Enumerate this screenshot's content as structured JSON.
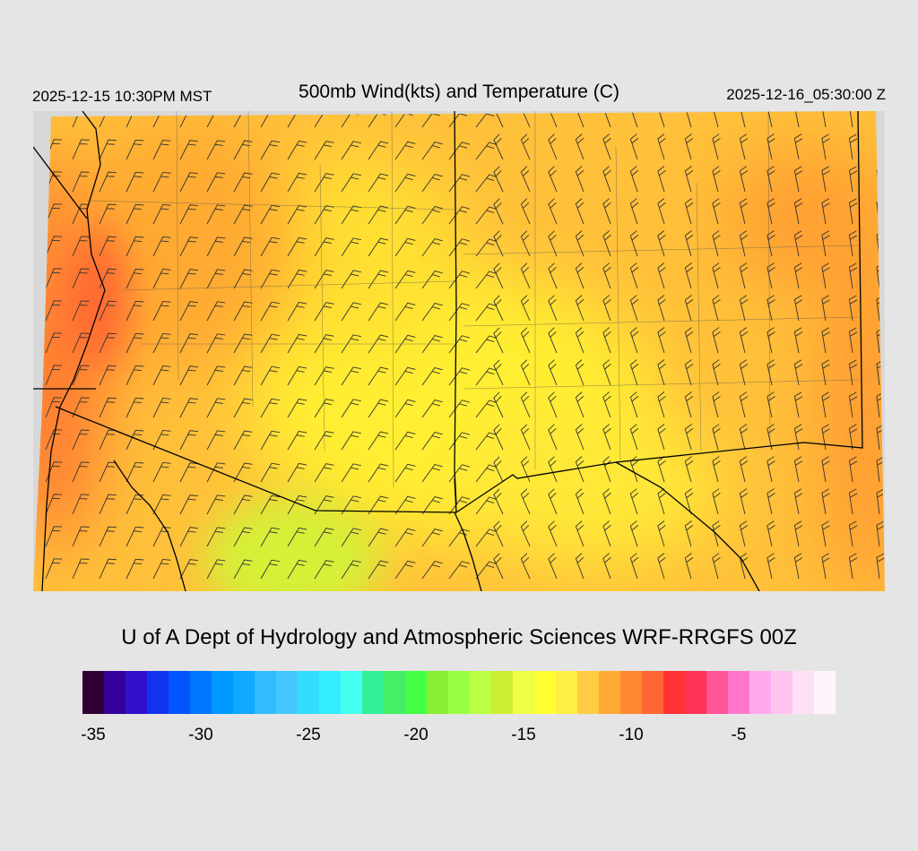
{
  "header": {
    "valid_local": "2025-12-15 10:30PM MST",
    "title": "500mb Wind(kts) and Temperature (C)",
    "valid_utc": "2025-12-16_05:30:00 Z"
  },
  "credit": "U of A Dept of Hydrology and Atmospheric Sciences WRF-RRGFS 00Z",
  "colorbar": {
    "colors": [
      "#330033",
      "#330099",
      "#3311cc",
      "#1133ee",
      "#0055ff",
      "#0077ff",
      "#0099ff",
      "#11a9ff",
      "#33bbff",
      "#44c8ff",
      "#33ddff",
      "#33eeff",
      "#44ffee",
      "#33ee99",
      "#44ee66",
      "#44ff44",
      "#88ee33",
      "#99ff44",
      "#bbff44",
      "#ccee33",
      "#eeff44",
      "#ffff33",
      "#ffee44",
      "#ffcc44",
      "#ffaa33",
      "#ff8833",
      "#ff6633",
      "#ff3333",
      "#ff3355",
      "#ff5599",
      "#ff77cc",
      "#ffaaee",
      "#ffc4ee",
      "#ffe0f5",
      "#fff4fc"
    ],
    "ticks": [
      {
        "value": -35,
        "label": "-35"
      },
      {
        "value": -30,
        "label": "-30"
      },
      {
        "value": -25,
        "label": "-25"
      },
      {
        "value": -20,
        "label": "-20"
      },
      {
        "value": -15,
        "label": "-15"
      },
      {
        "value": -10,
        "label": "-10"
      },
      {
        "value": -5,
        "label": "-5"
      }
    ],
    "min": -35.5,
    "max": -0.5
  },
  "map": {
    "background": "#d8d8d8",
    "border_color": "#000000",
    "warm_regions": [
      {
        "name": "west-coast",
        "value": -11.5
      },
      {
        "name": "east-edge",
        "value": -12
      },
      {
        "name": "north-center",
        "value": -13
      }
    ],
    "cool_regions": [
      {
        "name": "four-corners",
        "value": -15.5
      },
      {
        "name": "southwest-sonora",
        "value": -16.5
      }
    ],
    "base_temperature": -14
  }
}
